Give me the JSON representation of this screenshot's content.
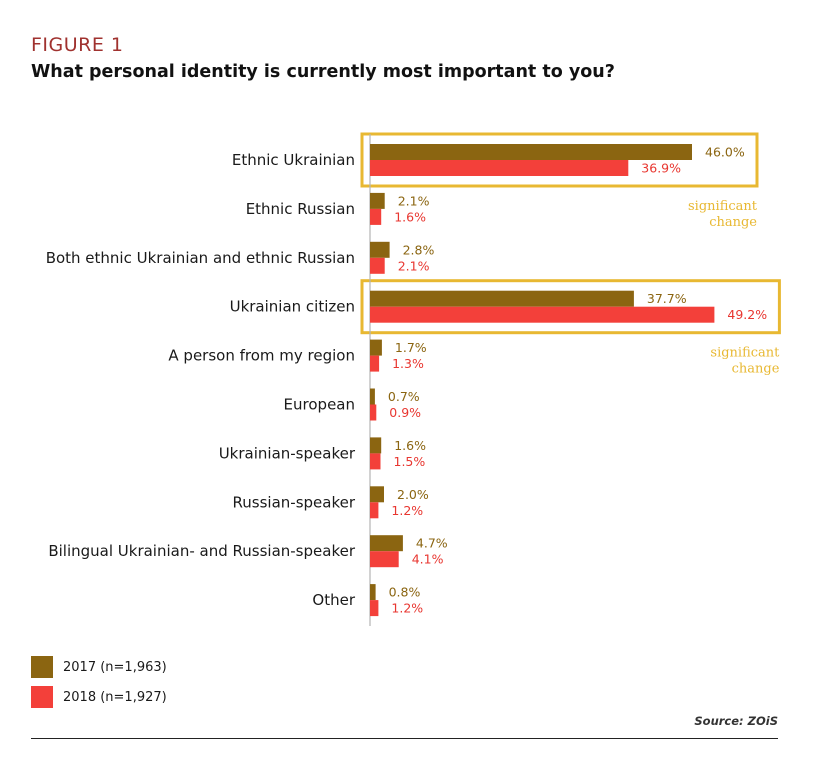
{
  "figure_label": "FIGURE 1",
  "title": "What personal identity is currently most important to you?",
  "source": "Source: ZOiS",
  "colors": {
    "s2017": "#8b6511",
    "s2018": "#f3403a",
    "highlight": "#e8b832"
  },
  "chart_data": {
    "type": "bar",
    "orientation": "horizontal",
    "categories": [
      "Ethnic Ukrainian",
      "Ethnic Russian",
      "Both ethnic Ukrainian and ethnic Russian",
      "Ukrainian citizen",
      "A person from my region",
      "European",
      "Ukrainian-speaker",
      "Russian-speaker",
      "Bilingual Ukrainian- and Russian-speaker",
      "Other"
    ],
    "series": [
      {
        "name": "2017 (n=1,963)",
        "values": [
          46.0,
          2.1,
          2.8,
          37.7,
          1.7,
          0.7,
          1.6,
          2.0,
          4.7,
          0.8
        ],
        "labels": [
          "46.0%",
          "2.1%",
          "2.8%",
          "37.7%",
          "1.7%",
          "0.7%",
          "1.6%",
          "2.0%",
          "4.7%",
          "0.8%"
        ]
      },
      {
        "name": "2018 (n=1,927)",
        "values": [
          36.9,
          1.6,
          2.1,
          49.2,
          1.3,
          0.9,
          1.5,
          1.2,
          4.1,
          1.2
        ],
        "labels": [
          "36.9%",
          "1.6%",
          "2.1%",
          "49.2%",
          "1.3%",
          "0.9%",
          "1.5%",
          "1.2%",
          "4.1%",
          "1.2%"
        ]
      }
    ],
    "highlighted_categories": [
      0,
      3
    ],
    "highlight_note": [
      "significant",
      "change"
    ],
    "grid": false,
    "legend_position": "bottom-left"
  }
}
